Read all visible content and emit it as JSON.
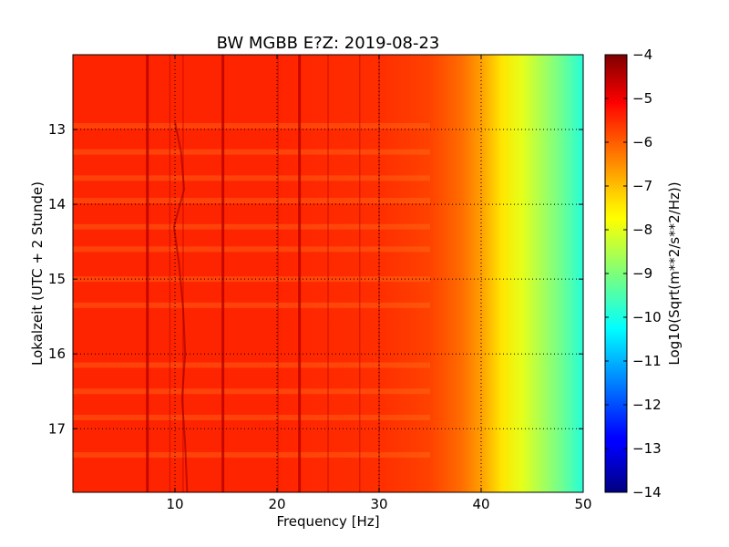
{
  "chart_data": {
    "type": "heatmap",
    "title": "BW MGBB E?Z: 2019-08-23",
    "xlabel": "Frequency [Hz]",
    "ylabel": "Lokalzeit (UTC + 2 Stunde)",
    "xlim": [
      0,
      50
    ],
    "ylim": [
      17.85,
      12.0
    ],
    "x_ticks": [
      10,
      20,
      30,
      40,
      50
    ],
    "y_ticks": [
      13,
      14,
      15,
      16,
      17
    ],
    "grid": true,
    "colorbar": {
      "label": "Log10(Sqrt(m**2/s**2/Hz))",
      "range": [
        -14,
        -4
      ],
      "ticks": [
        -4,
        -5,
        -6,
        -7,
        -8,
        -9,
        -10,
        -11,
        -12,
        -13,
        -14
      ],
      "colormap": "jet"
    },
    "level_profile": {
      "frequency_hz": [
        0,
        10,
        20,
        30,
        35,
        38,
        40,
        42,
        44,
        46,
        48,
        50
      ],
      "log10_amplitude": [
        -5.6,
        -5.6,
        -5.6,
        -5.7,
        -5.9,
        -6.3,
        -6.8,
        -7.5,
        -8.0,
        -8.6,
        -9.2,
        -9.9
      ]
    },
    "spectral_lines_hz": [
      7.3,
      9.5,
      10.8,
      14.7,
      20.1,
      22.2,
      25.0,
      28.1,
      30.0
    ],
    "drifting_line": {
      "time": [
        12.9,
        13.3,
        13.8,
        14.3,
        14.8,
        15.4,
        16.0,
        16.6,
        17.2,
        17.85
      ],
      "frequency_hz": [
        10.0,
        10.6,
        10.9,
        9.9,
        10.4,
        10.8,
        11.0,
        10.7,
        11.0,
        11.2
      ]
    },
    "noise_bands_time": [
      12.95,
      13.3,
      13.65,
      13.95,
      14.3,
      14.6,
      15.0,
      15.35,
      16.15,
      16.5,
      16.85,
      17.35
    ]
  }
}
